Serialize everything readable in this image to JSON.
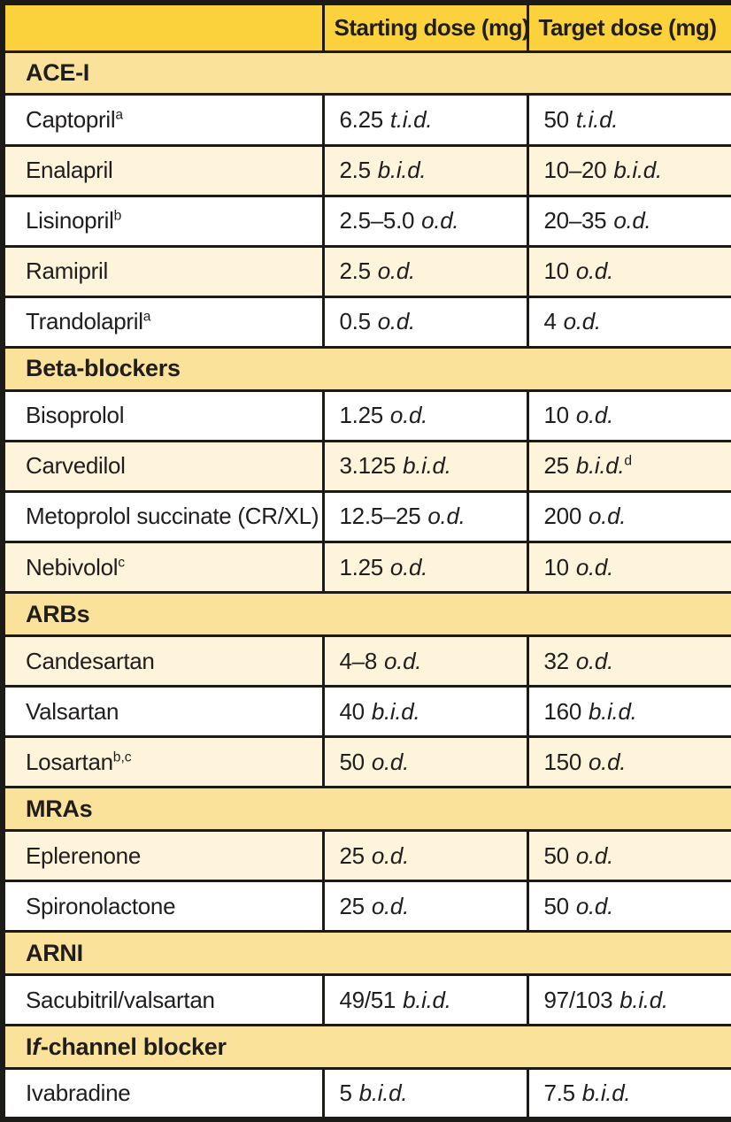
{
  "colors": {
    "header_bg": "#fcd23c",
    "section_bg": "#fbe29a",
    "row_cream_bg": "#fdf4db",
    "row_white_bg": "#ffffff",
    "border": "#1d1b18",
    "text": "#201d1d"
  },
  "table": {
    "columns": [
      "",
      "Starting dose (mg)",
      "Target dose (mg)"
    ],
    "sections": [
      {
        "label": "ACE-I",
        "rows": [
          {
            "drug": "Captopril",
            "sup": "a",
            "start": "6.25",
            "start_freq": "t.i.d.",
            "target": "50",
            "target_freq": "t.i.d.",
            "target_sup": "",
            "shade": "white"
          },
          {
            "drug": "Enalapril",
            "sup": "",
            "start": "2.5",
            "start_freq": "b.i.d.",
            "target": "10–20",
            "target_freq": "b.i.d.",
            "target_sup": "",
            "shade": "cream"
          },
          {
            "drug": "Lisinopril",
            "sup": "b",
            "start": "2.5–5.0",
            "start_freq": "o.d.",
            "target": "20–35",
            "target_freq": "o.d.",
            "target_sup": "",
            "shade": "white"
          },
          {
            "drug": "Ramipril",
            "sup": "",
            "start": "2.5",
            "start_freq": "o.d.",
            "target": "10",
            "target_freq": "o.d.",
            "target_sup": "",
            "shade": "cream"
          },
          {
            "drug": "Trandolapril",
            "sup": "a",
            "start": "0.5",
            "start_freq": "o.d.",
            "target": "4",
            "target_freq": "o.d.",
            "target_sup": "",
            "shade": "white"
          }
        ]
      },
      {
        "label": "Beta-blockers",
        "rows": [
          {
            "drug": "Bisoprolol",
            "sup": "",
            "start": "1.25",
            "start_freq": "o.d.",
            "target": "10",
            "target_freq": "o.d.",
            "target_sup": "",
            "shade": "white"
          },
          {
            "drug": "Carvedilol",
            "sup": "",
            "start": "3.125",
            "start_freq": "b.i.d.",
            "target": "25",
            "target_freq": "b.i.d.",
            "target_sup": "d",
            "shade": "cream"
          },
          {
            "drug": "Metoprolol succinate (CR/XL)",
            "sup": "",
            "start": "12.5–25",
            "start_freq": "o.d.",
            "target": "200",
            "target_freq": "o.d.",
            "target_sup": "",
            "shade": "white"
          },
          {
            "drug": "Nebivolol",
            "sup": "c",
            "start": "1.25",
            "start_freq": "o.d.",
            "target": "10",
            "target_freq": "o.d.",
            "target_sup": "",
            "shade": "cream"
          }
        ]
      },
      {
        "label": "ARBs",
        "rows": [
          {
            "drug": "Candesartan",
            "sup": "",
            "start": "4–8",
            "start_freq": "o.d.",
            "target": "32",
            "target_freq": "o.d.",
            "target_sup": "",
            "shade": "cream"
          },
          {
            "drug": "Valsartan",
            "sup": "",
            "start": "40",
            "start_freq": "b.i.d.",
            "target": "160",
            "target_freq": "b.i.d.",
            "target_sup": "",
            "shade": "white"
          },
          {
            "drug": "Losartan",
            "sup": "b,c",
            "start": "50",
            "start_freq": "o.d.",
            "target": "150",
            "target_freq": "o.d.",
            "target_sup": "",
            "shade": "cream"
          }
        ]
      },
      {
        "label": "MRAs",
        "rows": [
          {
            "drug": "Eplerenone",
            "sup": "",
            "start": "25",
            "start_freq": "o.d.",
            "target": "50",
            "target_freq": "o.d.",
            "target_sup": "",
            "shade": "cream"
          },
          {
            "drug": "Spironolactone",
            "sup": "",
            "start": "25",
            "start_freq": "o.d.",
            "target": "50",
            "target_freq": "o.d.",
            "target_sup": "",
            "shade": "white"
          }
        ]
      },
      {
        "label": "ARNI",
        "rows": [
          {
            "drug": "Sacubitril/valsartan",
            "sup": "",
            "start": "49/51",
            "start_freq": "b.i.d.",
            "target": "97/103",
            "target_freq": "b.i.d.",
            "target_sup": "",
            "shade": "white"
          }
        ]
      },
      {
        "label": "If-channel blocker",
        "label_parts": {
          "prefix": "I",
          "italic": "f",
          "rest": "-channel blocker"
        },
        "rows": [
          {
            "drug": "Ivabradine",
            "sup": "",
            "start": "5",
            "start_freq": "b.i.d.",
            "target": "7.5",
            "target_freq": "b.i.d.",
            "target_sup": "",
            "shade": "white"
          }
        ]
      }
    ]
  }
}
